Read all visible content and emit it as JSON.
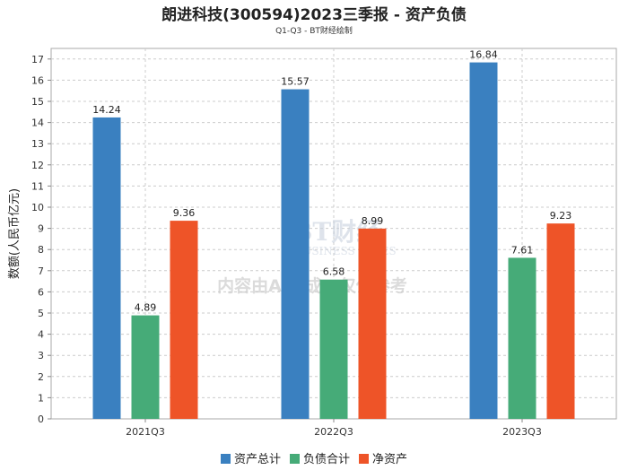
{
  "chart_data": {
    "type": "bar",
    "title": "朗进科技(300594)2023三季报 - 资产负债",
    "subtitle": "Q1-Q3 - BT财经绘制",
    "xlabel": "",
    "ylabel": "数额(人民币亿元)",
    "ylim": [
      0,
      17.5
    ],
    "yticks": [
      0,
      1,
      2,
      3,
      4,
      5,
      6,
      7,
      8,
      9,
      10,
      11,
      12,
      13,
      14,
      15,
      16,
      17
    ],
    "categories": [
      "2021Q3",
      "2022Q3",
      "2023Q3"
    ],
    "series": [
      {
        "name": "资产总计",
        "color": "#3a80c0",
        "values": [
          14.24,
          15.57,
          16.84
        ],
        "labels": [
          "14.24",
          "15.57",
          "16.84"
        ]
      },
      {
        "name": "负债合计",
        "color": "#46ab78",
        "values": [
          4.89,
          6.58,
          7.61
        ],
        "labels": [
          "4.89",
          "6.58",
          "7.61"
        ]
      },
      {
        "name": "净资产",
        "color": "#ee5428",
        "values": [
          9.36,
          8.99,
          9.23
        ],
        "labels": [
          "9.36",
          "8.99",
          "9.23"
        ]
      }
    ],
    "legend_position": "bottom",
    "grid": true,
    "watermark": {
      "brand": "BT财经",
      "brand_en": "BUSINESS TIMES",
      "notice": "内容由AI生成，仅供参考"
    }
  }
}
